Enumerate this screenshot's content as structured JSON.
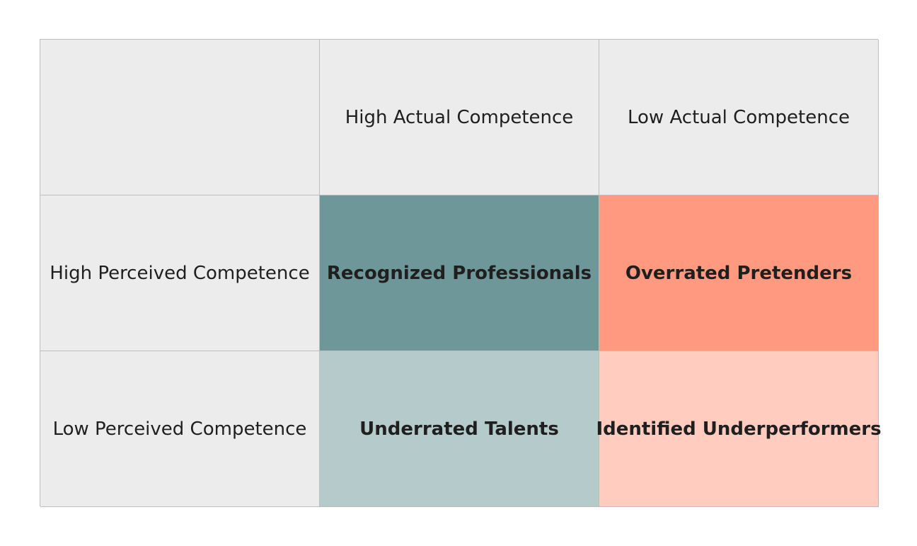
{
  "matrix": {
    "corner": "",
    "columns": [
      "High Actual Competence",
      "Low Actual Competence"
    ],
    "rows": [
      "High Perceived Competence",
      "Low Perceived Competence"
    ],
    "quadrants": [
      {
        "label": "Recognized Professionals",
        "color": "#6e9799"
      },
      {
        "label": "Overrated Pretenders",
        "color": "#ff9a80"
      },
      {
        "label": "Underrated Talents",
        "color": "#b5cbcb"
      },
      {
        "label": "Identified Underperformers",
        "color": "#ffccbf"
      }
    ],
    "header_color": "#ececec"
  }
}
